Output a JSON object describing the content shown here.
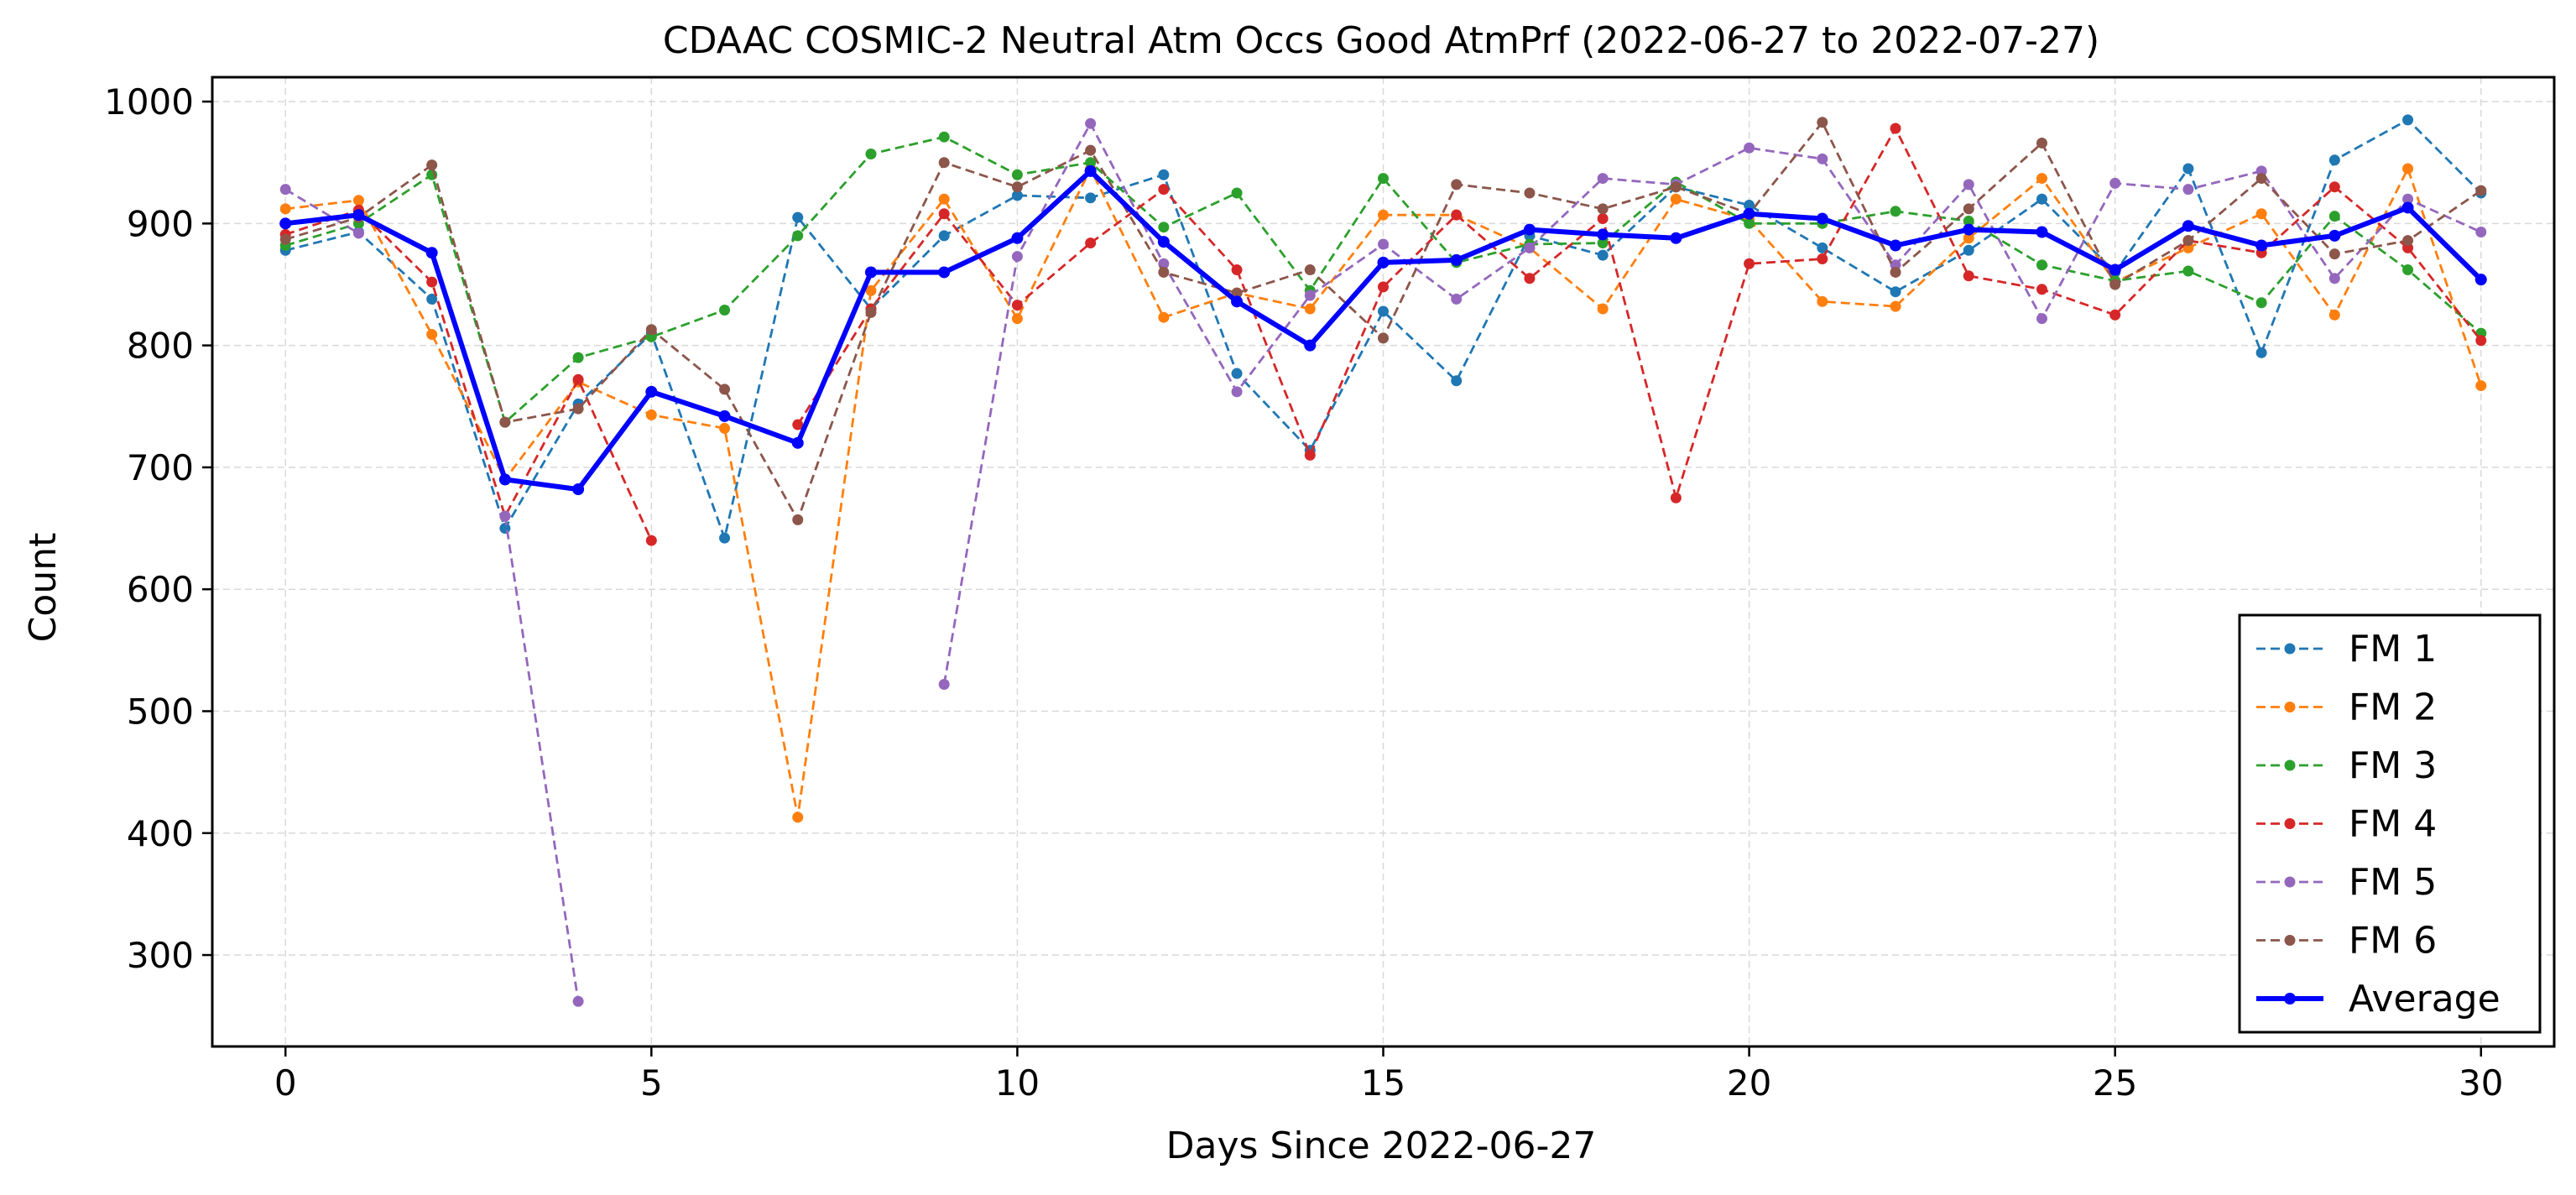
{
  "chart_data": {
    "type": "line",
    "title": "CDAAC COSMIC-2 Neutral Atm Occs Good AtmPrf (2022-06-27 to 2022-07-27)",
    "xlabel": "Days Since 2022-06-27",
    "ylabel": "Count",
    "xlim": [
      -1,
      31
    ],
    "ylim": [
      225,
      1020
    ],
    "xticks": [
      0,
      5,
      10,
      15,
      20,
      25,
      30
    ],
    "yticks": [
      300,
      400,
      500,
      600,
      700,
      800,
      900,
      1000
    ],
    "grid": true,
    "legend_position": "bottom-right",
    "x": [
      0,
      1,
      2,
      3,
      4,
      5,
      6,
      7,
      8,
      9,
      10,
      11,
      12,
      13,
      14,
      15,
      16,
      17,
      18,
      19,
      20,
      21,
      22,
      23,
      24,
      25,
      26,
      27,
      28,
      29,
      30
    ],
    "series": [
      {
        "name": "FM 1",
        "color": "#1f77b4",
        "style": "dashed",
        "values": [
          878,
          893,
          838,
          650,
          752,
          810,
          642,
          905,
          830,
          890,
          923,
          921,
          940,
          777,
          714,
          828,
          771,
          890,
          874,
          930,
          915,
          880,
          844,
          878,
          920,
          860,
          945,
          794,
          952,
          985,
          925
        ]
      },
      {
        "name": "FM 2",
        "color": "#ff7f0e",
        "style": "dashed",
        "values": [
          912,
          919,
          809,
          690,
          770,
          743,
          732,
          413,
          845,
          920,
          822,
          945,
          823,
          843,
          830,
          907,
          907,
          880,
          830,
          920,
          903,
          836,
          832,
          888,
          937,
          852,
          880,
          908,
          825,
          945,
          767
        ]
      },
      {
        "name": "FM 3",
        "color": "#2ca02c",
        "style": "dashed",
        "values": [
          882,
          900,
          940,
          737,
          790,
          807,
          829,
          890,
          957,
          971,
          940,
          950,
          897,
          925,
          845,
          937,
          868,
          883,
          884,
          934,
          900,
          900,
          910,
          902,
          866,
          853,
          861,
          835,
          906,
          862,
          810
        ]
      },
      {
        "name": "FM 4",
        "color": "#d62728",
        "style": "dashed",
        "values": [
          891,
          911,
          852,
          660,
          772,
          640,
          null,
          735,
          830,
          908,
          833,
          884,
          928,
          862,
          710,
          848,
          907,
          855,
          904,
          675,
          867,
          871,
          978,
          857,
          846,
          825,
          886,
          876,
          930,
          880,
          804
        ]
      },
      {
        "name": "FM 5",
        "color": "#9467bd",
        "style": "dashed",
        "values": [
          928,
          892,
          null,
          660,
          262,
          null,
          null,
          null,
          null,
          522,
          873,
          982,
          867,
          762,
          841,
          883,
          838,
          880,
          937,
          932,
          962,
          953,
          866,
          932,
          822,
          933,
          928,
          943,
          855,
          920,
          893
        ]
      },
      {
        "name": "FM 6",
        "color": "#8c564b",
        "style": "dashed",
        "values": [
          887,
          905,
          948,
          737,
          748,
          813,
          764,
          657,
          827,
          950,
          930,
          960,
          860,
          843,
          862,
          806,
          932,
          925,
          912,
          930,
          908,
          983,
          860,
          912,
          966,
          850,
          886,
          937,
          875,
          886,
          927
        ]
      },
      {
        "name": "Average",
        "color": "#0000ff",
        "style": "solid",
        "values": [
          900,
          907,
          876,
          690,
          682,
          762,
          742,
          720,
          860,
          860,
          888,
          943,
          885,
          836,
          800,
          868,
          870,
          895,
          891,
          888,
          908,
          904,
          882,
          895,
          893,
          862,
          898,
          882,
          890,
          913,
          854
        ]
      }
    ]
  }
}
